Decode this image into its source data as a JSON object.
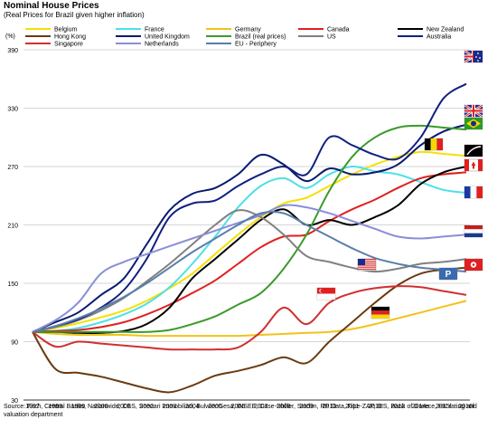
{
  "chart_data": {
    "type": "line",
    "title": "Nominal House Prices",
    "subtitle": "(Real Prices for Brazil given higher inflation)",
    "ylabel": "(%)",
    "ylim": [
      30,
      390
    ],
    "yticks": [
      30,
      90,
      150,
      210,
      270,
      330,
      390
    ],
    "x": [
      "1997",
      "1998",
      "1999",
      "2000",
      "2001",
      "2002",
      "2003",
      "2004",
      "2005",
      "2006",
      "2007",
      "2008",
      "2009",
      "2010",
      "2011",
      "2012",
      "2013",
      "2014e",
      "2015f",
      "2016f"
    ],
    "grid": "horizontal",
    "legend_position": "top",
    "source": "Source: Fitch, Central Banks, Nationwide, CBS, Scenari Immobiliari, BulwienGesa, INSEE, Case-Shiller, Stadim, RP Data, Fipe-ZAP, BIS, Bank of Greece, HK rating and valuation department",
    "series": [
      {
        "name": "Belgium",
        "color": "#f5e000",
        "values": [
          100,
          104,
          109,
          115,
          122,
          132,
          145,
          160,
          180,
          200,
          218,
          232,
          238,
          250,
          262,
          272,
          280,
          285,
          283,
          281
        ]
      },
      {
        "name": "France",
        "color": "#4ee0e8",
        "values": [
          100,
          101,
          104,
          110,
          118,
          129,
          146,
          170,
          198,
          228,
          250,
          258,
          248,
          262,
          270,
          265,
          262,
          254,
          246,
          243
        ]
      },
      {
        "name": "Germany",
        "color": "#f2c21a",
        "values": [
          100,
          98,
          97,
          97,
          97,
          96,
          96,
          96,
          96,
          96,
          97,
          98,
          99,
          100,
          103,
          108,
          114,
          120,
          126,
          132
        ]
      },
      {
        "name": "Canada",
        "color": "#e02020",
        "values": [
          100,
          101,
          102,
          105,
          110,
          118,
          128,
          140,
          153,
          170,
          187,
          198,
          200,
          214,
          226,
          236,
          248,
          258,
          262,
          264
        ]
      },
      {
        "name": "New Zealand",
        "color": "#000000",
        "values": [
          100,
          100,
          99,
          99,
          101,
          108,
          125,
          155,
          175,
          195,
          215,
          226,
          210,
          215,
          210,
          218,
          230,
          252,
          264,
          270
        ]
      },
      {
        "name": "Hong Kong",
        "color": "#6b3a10",
        "values": [
          100,
          62,
          58,
          54,
          48,
          42,
          38,
          45,
          55,
          60,
          66,
          74,
          68,
          90,
          110,
          130,
          148,
          160,
          164,
          166
        ]
      },
      {
        "name": "United Kingdom",
        "color": "#0a1a6e",
        "values": [
          100,
          110,
          120,
          138,
          155,
          190,
          225,
          242,
          248,
          262,
          282,
          272,
          255,
          268,
          262,
          264,
          272,
          292,
          306,
          313
        ]
      },
      {
        "name": "Brazil (real prices)",
        "color": "#3a9a2a",
        "values": [
          100,
          100,
          100,
          100,
          100,
          100,
          102,
          108,
          116,
          128,
          140,
          165,
          200,
          245,
          280,
          300,
          310,
          312,
          310,
          308
        ]
      },
      {
        "name": "US",
        "color": "#808080",
        "values": [
          100,
          105,
          112,
          122,
          135,
          152,
          170,
          190,
          210,
          225,
          218,
          200,
          178,
          172,
          166,
          162,
          165,
          170,
          172,
          175
        ]
      },
      {
        "name": "Australia",
        "color": "#102080",
        "values": [
          100,
          106,
          113,
          125,
          143,
          175,
          218,
          232,
          235,
          250,
          262,
          270,
          262,
          300,
          292,
          282,
          278,
          300,
          340,
          355
        ]
      },
      {
        "name": "Singapore",
        "color": "#d03030",
        "values": [
          100,
          85,
          90,
          88,
          86,
          84,
          82,
          82,
          82,
          84,
          100,
          125,
          108,
          130,
          140,
          145,
          147,
          146,
          142,
          138
        ]
      },
      {
        "name": "Netherlands",
        "color": "#8a8ed8",
        "values": [
          100,
          112,
          130,
          160,
          172,
          180,
          188,
          196,
          204,
          212,
          220,
          230,
          228,
          222,
          214,
          206,
          198,
          196,
          198,
          200
        ]
      },
      {
        "name": "EU - Periphery",
        "color": "#5a7eaa",
        "values": [
          100,
          106,
          114,
          124,
          136,
          150,
          166,
          182,
          196,
          210,
          222,
          222,
          210,
          198,
          186,
          176,
          170,
          166,
          164,
          162
        ]
      }
    ]
  },
  "flags": [
    {
      "name": "australia-flag",
      "label": "Australia",
      "colors": [
        "#1a2a8a",
        "#ffffff",
        "#e02020"
      ]
    },
    {
      "name": "uk-flag",
      "label": "United Kingdom",
      "colors": [
        "#1a2a8a",
        "#ffffff",
        "#e02020"
      ]
    },
    {
      "name": "brazil-flag",
      "label": "Brazil",
      "colors": [
        "#2a9a2a",
        "#f5d800",
        "#1a2a8a"
      ]
    },
    {
      "name": "belgium-flag",
      "label": "Belgium",
      "colors": [
        "#000000",
        "#f5d800",
        "#e02020"
      ]
    },
    {
      "name": "new-zealand-flag",
      "label": "New Zealand",
      "colors": [
        "#000000",
        "#ffffff"
      ]
    },
    {
      "name": "canada-flag",
      "label": "Canada",
      "colors": [
        "#e02020",
        "#ffffff"
      ]
    },
    {
      "name": "france-flag",
      "label": "France",
      "colors": [
        "#1a3aa0",
        "#ffffff",
        "#e02020"
      ]
    },
    {
      "name": "netherlands-flag",
      "label": "Netherlands",
      "colors": [
        "#c02020",
        "#ffffff",
        "#1a3a8a"
      ]
    },
    {
      "name": "us-flag",
      "label": "US",
      "colors": [
        "#1a2a8a",
        "#ffffff",
        "#d02020"
      ]
    },
    {
      "name": "eu-periphery-flag",
      "label": "EU - Periphery",
      "colors": [
        "#3a6ab0",
        "#ffffff"
      ]
    },
    {
      "name": "hong-kong-flag",
      "label": "Hong Kong",
      "colors": [
        "#e02020",
        "#ffffff"
      ]
    },
    {
      "name": "singapore-flag",
      "label": "Singapore",
      "colors": [
        "#e02020",
        "#ffffff"
      ]
    },
    {
      "name": "germany-flag",
      "label": "Germany",
      "colors": [
        "#000000",
        "#e02020",
        "#f5d800"
      ]
    }
  ]
}
